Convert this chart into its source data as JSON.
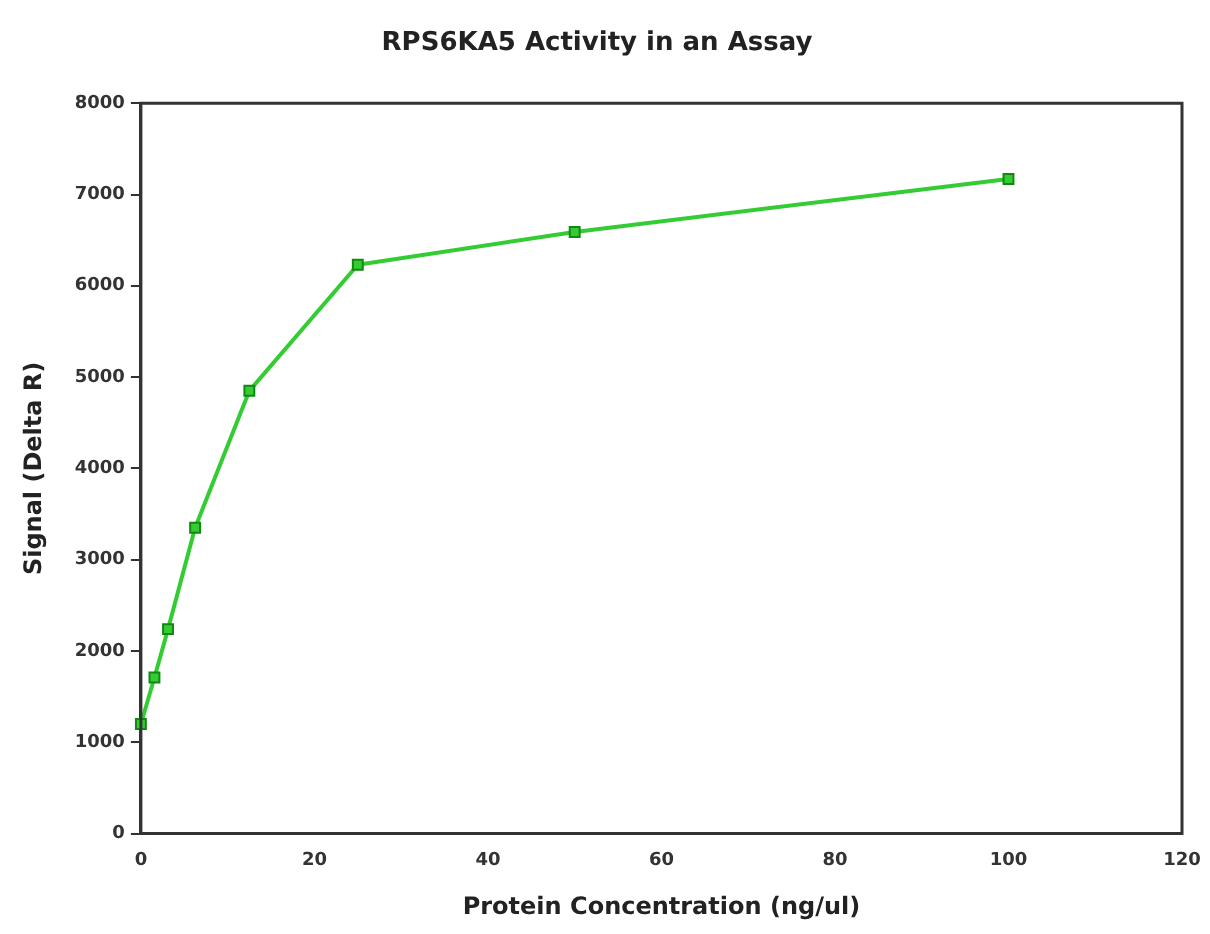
{
  "chart_data": {
    "type": "line",
    "title": "RPS6KA5 Activity in an Assay",
    "xlabel": "Protein Concentration (ng/ul)",
    "ylabel": "Signal (Delta R)",
    "x": [
      0,
      1.5625,
      3.125,
      6.25,
      12.5,
      25,
      50,
      100
    ],
    "series": [
      {
        "color": "#33cc33",
        "values": [
          1200,
          1710,
          2240,
          3350,
          4850,
          6230,
          6590,
          7170
        ]
      }
    ],
    "xlim": [
      0,
      120
    ],
    "xticks": [
      0,
      20,
      40,
      60,
      80,
      100,
      120
    ],
    "ylim": [
      0,
      8000
    ],
    "yticks": [
      0,
      1000,
      2000,
      3000,
      4000,
      5000,
      6000,
      7000,
      8000
    ],
    "grid": false,
    "legend": false,
    "marker": "square",
    "line_style": "solid"
  }
}
